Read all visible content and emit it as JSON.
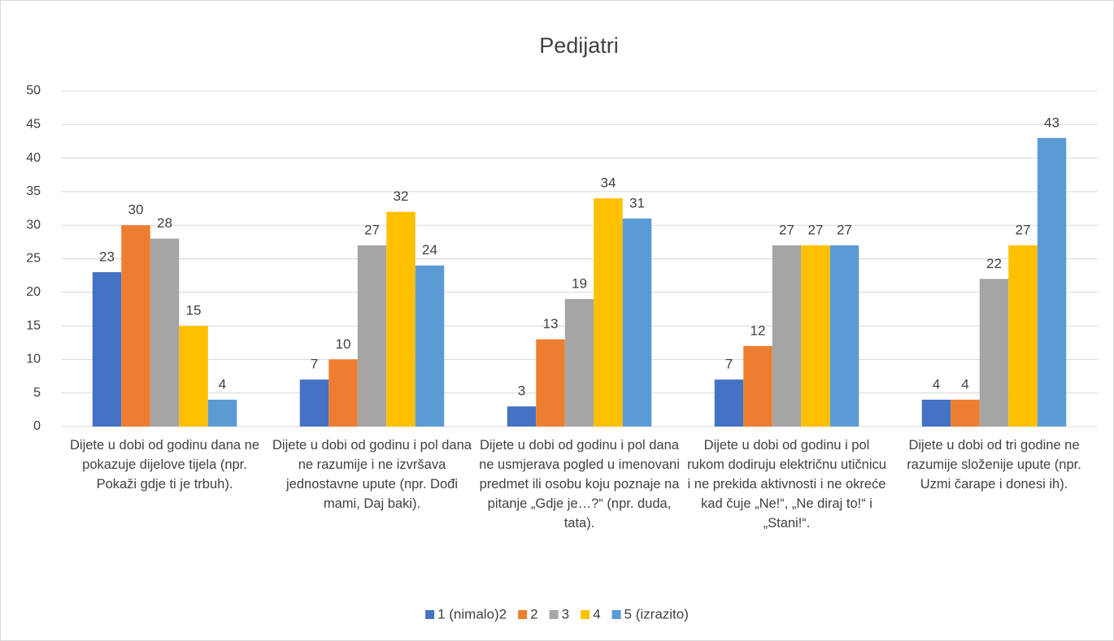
{
  "chart_data": {
    "type": "bar",
    "title": "Pedijatri",
    "categories": [
      "Dijete u dobi od godinu dana ne pokazuje dijelove tijela (npr. Pokaži gdje ti je trbuh).",
      "Dijete u dobi od godinu i pol dana ne razumije i ne izvršava jednostavne upute (npr. Dođi mami, Daj baki).",
      "Dijete u dobi od godinu i pol dana ne usmjerava pogled u imenovani predmet ili osobu koju poznaje na pitanje „Gdje je…?“ (npr. duda, tata).",
      "Dijete u dobi od godinu i pol rukom dodiruju električnu utičnicu i ne prekida aktivnosti i ne okreće kad čuje „Ne!“, „Ne diraj to!“ i „Stani!“.",
      "Dijete u dobi od tri godine ne razumije složenije upute (npr. Uzmi čarape i donesi ih)."
    ],
    "series": [
      {
        "name": "1 (nimalo)2",
        "color": "#4472c4",
        "values": [
          23,
          7,
          3,
          7,
          4
        ]
      },
      {
        "name": "2",
        "color": "#ed7d31",
        "values": [
          30,
          10,
          13,
          12,
          4
        ]
      },
      {
        "name": "3",
        "color": "#a5a5a5",
        "values": [
          28,
          27,
          19,
          27,
          22
        ]
      },
      {
        "name": "4",
        "color": "#ffc000",
        "values": [
          15,
          32,
          34,
          27,
          27
        ]
      },
      {
        "name": "5 (izrazito)",
        "color": "#5b9bd5",
        "values": [
          4,
          24,
          31,
          27,
          43
        ]
      }
    ],
    "ylim": [
      0,
      50
    ],
    "yticks": [
      0,
      5,
      10,
      15,
      20,
      25,
      30,
      35,
      40,
      45,
      50
    ],
    "grid": true,
    "legend": "bottom"
  }
}
